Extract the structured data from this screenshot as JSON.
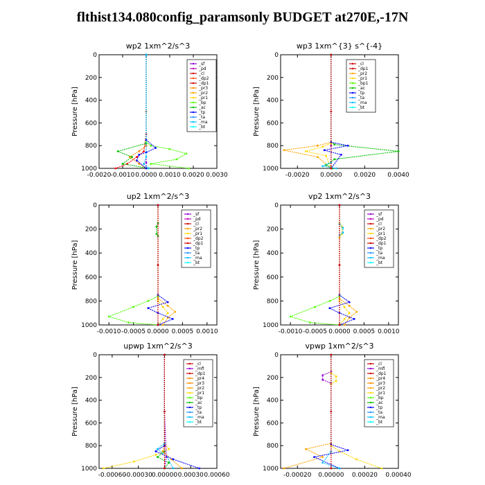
{
  "title": "flthist134.080config_paramsonly  BUDGET at270E,-17N",
  "chart_data": [
    {
      "type": "line",
      "title": "wp2   1xm^2/s^3",
      "ylabel": "Pressure [hPa]",
      "xlim": [
        -0.002,
        0.003
      ],
      "ylim": [
        1000,
        0
      ],
      "xticks": [
        -0.002,
        -0.001,
        0.0,
        0.001,
        0.002,
        0.003
      ],
      "xtick_labels": [
        "-0.0020",
        "-0.0010",
        "0.0000",
        "0.0010",
        "0.0020",
        "0.0030"
      ],
      "yticks": [
        0,
        200,
        400,
        600,
        800,
        1000
      ],
      "ytick_labels": [
        "0",
        "200",
        "400",
        "600",
        "800",
        "1000"
      ],
      "legend": [
        "_sf",
        "_pd",
        "_cl",
        "_dp2",
        "_dp1",
        "_pr3",
        "_pr2",
        "_pr1",
        "_bp",
        "_ac",
        "_tp",
        "_ta",
        "_ma",
        "_bt"
      ],
      "series": [
        {
          "color": "#9400d3",
          "x": [
            0,
            0,
            0,
            0,
            0
          ],
          "y": [
            0,
            500,
            800,
            950,
            1000
          ]
        },
        {
          "color": "#ff8c00",
          "x": [
            0,
            0,
            0,
            -0.0003,
            -0.0007,
            -0.0003,
            0
          ],
          "y": [
            0,
            500,
            800,
            850,
            900,
            960,
            1000
          ]
        },
        {
          "color": "#ff0000",
          "x": [
            0,
            0,
            -0.0001,
            -0.0004,
            -0.0008,
            -0.0013
          ],
          "y": [
            0,
            700,
            850,
            900,
            960,
            1000
          ]
        },
        {
          "color": "#00c000",
          "x": [
            0,
            0,
            -0.0012,
            -0.0006,
            -0.001,
            0.0001
          ],
          "y": [
            0,
            780,
            850,
            900,
            960,
            1000
          ]
        },
        {
          "color": "#4dff00",
          "x": [
            0,
            0,
            0.0002,
            0.001,
            0.0017,
            0.0013,
            0.0002,
            0.0018
          ],
          "y": [
            0,
            770,
            800,
            830,
            870,
            920,
            960,
            1000
          ]
        },
        {
          "color": "#0000ff",
          "x": [
            0,
            0,
            0.0004,
            0,
            -0.0003,
            -0.0004,
            0
          ],
          "y": [
            0,
            750,
            820,
            860,
            880,
            930,
            1000
          ]
        },
        {
          "color": "#00bfff",
          "x": [
            0,
            0,
            -0.0001,
            0.0001
          ],
          "y": [
            0,
            900,
            960,
            1000
          ]
        }
      ]
    },
    {
      "type": "line",
      "title": "wp3   1xm^{3} s^{-4}",
      "ylabel": "Pressure [hPa]",
      "xlim": [
        -0.003,
        0.004
      ],
      "ylim": [
        1000,
        0
      ],
      "xticks": [
        -0.002,
        0.0,
        0.002,
        0.004
      ],
      "xtick_labels": [
        "-0.0020",
        "0.0000",
        "0.0020",
        "0.0040"
      ],
      "yticks": [
        0,
        200,
        400,
        600,
        800,
        1000
      ],
      "ytick_labels": [
        "0",
        "200",
        "400",
        "600",
        "800",
        "1000"
      ],
      "legend": [
        "_cl",
        "_dp1",
        "_pr2",
        "_pr1",
        "_bp1",
        "_ac",
        "_tp",
        "_ta",
        "_ma",
        "_bt"
      ],
      "series": [
        {
          "color": "#9400d3",
          "x": [
            0,
            0,
            0
          ],
          "y": [
            0,
            800,
            1000
          ]
        },
        {
          "color": "#ffa500",
          "x": [
            0,
            0,
            -0.0008,
            -0.0028,
            -0.0008,
            0
          ],
          "y": [
            0,
            770,
            800,
            840,
            900,
            1000
          ]
        },
        {
          "color": "#ffd700",
          "x": [
            0,
            0,
            -0.0005,
            -0.0015,
            -0.0003,
            0
          ],
          "y": [
            0,
            780,
            810,
            850,
            890,
            1000
          ]
        },
        {
          "color": "#00c000",
          "x": [
            0,
            0,
            0.0002,
            0.004,
            0.0002,
            -0.0003,
            0.0001
          ],
          "y": [
            0,
            770,
            790,
            850,
            920,
            970,
            1000
          ]
        },
        {
          "color": "#0000ff",
          "x": [
            0,
            0,
            0.001,
            -0.0004,
            0.0006,
            0
          ],
          "y": [
            0,
            770,
            800,
            840,
            880,
            1000
          ]
        },
        {
          "color": "#00bfff",
          "x": [
            0,
            0,
            -0.0005,
            0.0003
          ],
          "y": [
            0,
            950,
            980,
            1000
          ]
        },
        {
          "color": "#cc0000",
          "x": [
            0,
            0,
            0
          ],
          "y": [
            0,
            500,
            1000
          ]
        }
      ]
    },
    {
      "type": "line",
      "title": "up2   1xm^2/s^3",
      "ylabel": "Pressure [hPa]",
      "xlim": [
        -0.0012,
        0.0012
      ],
      "ylim": [
        1000,
        0
      ],
      "xticks": [
        -0.001,
        -0.0005,
        0.0,
        0.0005,
        0.001
      ],
      "xtick_labels": [
        "-0.0010",
        "-0.0005",
        "0.0000",
        "0.0005",
        "0.0010"
      ],
      "yticks": [
        0,
        200,
        400,
        600,
        800,
        1000
      ],
      "ytick_labels": [
        "0",
        "200",
        "400",
        "600",
        "800",
        "1000"
      ],
      "legend": [
        "_sf",
        "_pd",
        "_cl",
        "_pr2",
        "_pr1",
        "_dp2",
        "_dp1",
        "_tp",
        "_ta",
        "_ma",
        "_bt"
      ],
      "series": [
        {
          "color": "#00c000",
          "x": [
            0,
            -3e-05,
            -3e-05,
            0
          ],
          "y": [
            150,
            180,
            240,
            260
          ]
        },
        {
          "color": "#4dff00",
          "x": [
            0,
            0,
            -0.0002,
            -0.0005,
            -0.001,
            -0.0006,
            0
          ],
          "y": [
            0,
            760,
            800,
            850,
            930,
            980,
            1000
          ]
        },
        {
          "color": "#ffa500",
          "x": [
            0,
            0,
            0.0002,
            0.00035,
            0.0002,
            0.0001
          ],
          "y": [
            0,
            780,
            840,
            890,
            940,
            1000
          ]
        },
        {
          "color": "#ffd700",
          "x": [
            0,
            0,
            0.0001,
            0.0002,
            0.0001,
            0
          ],
          "y": [
            0,
            800,
            850,
            900,
            950,
            1000
          ]
        },
        {
          "color": "#0000ff",
          "x": [
            0,
            0,
            0.0002,
            -0.0002,
            0,
            0.0003,
            0
          ],
          "y": [
            0,
            750,
            810,
            860,
            900,
            950,
            1000
          ]
        },
        {
          "color": "#cc0000",
          "x": [
            0,
            0,
            0
          ],
          "y": [
            0,
            500,
            1000
          ]
        }
      ]
    },
    {
      "type": "line",
      "title": "vp2   1xm^2/s^3",
      "ylabel": "Pressure [hPa]",
      "xlim": [
        -0.0012,
        0.0012
      ],
      "ylim": [
        1000,
        0
      ],
      "xticks": [
        -0.001,
        -0.0005,
        0.0,
        0.0005,
        0.001
      ],
      "xtick_labels": [
        "-0.0010",
        "-0.0005",
        "0.0000",
        "0.0005",
        "0.0010"
      ],
      "yticks": [
        0,
        200,
        400,
        600,
        800,
        1000
      ],
      "ytick_labels": [
        "0",
        "200",
        "400",
        "600",
        "800",
        "1000"
      ],
      "legend": [
        "_sf",
        "_pd",
        "_cl",
        "_pr2",
        "_pr1",
        "_dp2",
        "_dp1",
        "_tp",
        "_ta",
        "_ma",
        "_bt"
      ],
      "series": [
        {
          "color": "#ffd700",
          "x": [
            0,
            5e-05,
            5e-05,
            0
          ],
          "y": [
            150,
            180,
            240,
            270
          ]
        },
        {
          "color": "#00bfff",
          "x": [
            0,
            7e-05,
            7e-05,
            0
          ],
          "y": [
            160,
            190,
            230,
            250
          ]
        },
        {
          "color": "#4dff00",
          "x": [
            0,
            0,
            -0.0002,
            -0.0005,
            -0.001,
            -0.0006,
            0
          ],
          "y": [
            0,
            760,
            800,
            850,
            930,
            980,
            1000
          ]
        },
        {
          "color": "#ffa500",
          "x": [
            0,
            0,
            0.0002,
            0.00035,
            0.0002,
            0.0001
          ],
          "y": [
            0,
            780,
            840,
            890,
            940,
            1000
          ]
        },
        {
          "color": "#ffd700",
          "x": [
            0,
            0,
            0.0001,
            0.0002,
            0.0001,
            0
          ],
          "y": [
            0,
            800,
            850,
            900,
            950,
            1000
          ]
        },
        {
          "color": "#0000ff",
          "x": [
            0,
            0,
            0.0002,
            -0.0002,
            0,
            0.0003,
            0
          ],
          "y": [
            0,
            750,
            810,
            860,
            900,
            950,
            1000
          ]
        },
        {
          "color": "#cc0000",
          "x": [
            0,
            0,
            0
          ],
          "y": [
            0,
            500,
            1000
          ]
        }
      ]
    },
    {
      "type": "line",
      "title": "upwp   1xm^2/s^3",
      "ylabel": "Pressure [hPa]",
      "xlim": [
        -0.00075,
        0.0006
      ],
      "ylim": [
        1000,
        0
      ],
      "xticks": [
        -0.0006,
        -0.0003,
        0.0,
        0.0003,
        0.0006
      ],
      "xtick_labels": [
        "-0.00060",
        "-0.00030",
        "0.00000",
        "0.00030",
        "0.00060"
      ],
      "yticks": [
        0,
        200,
        400,
        600,
        800,
        1000
      ],
      "ytick_labels": [
        "0",
        "200",
        "400",
        "600",
        "800",
        "1000"
      ],
      "legend": [
        "_cl",
        "_mfl",
        "_dp1",
        "_pr4",
        "_pr3",
        "_pr2",
        "_pr1",
        "_bp",
        "_ac",
        "_tp",
        "_ta",
        "_ma",
        "_bt"
      ],
      "series": [
        {
          "color": "#ffd700",
          "x": [
            0,
            0,
            5e-05,
            -0.0001,
            -0.00035,
            -0.0007
          ],
          "y": [
            0,
            780,
            830,
            880,
            940,
            1000
          ]
        },
        {
          "color": "#ffa500",
          "x": [
            0,
            0,
            -2e-05,
            8e-05,
            0.0002
          ],
          "y": [
            0,
            800,
            850,
            920,
            1000
          ]
        },
        {
          "color": "#0000ff",
          "x": [
            0,
            0,
            -0.0001,
            0.0001,
            0.0004
          ],
          "y": [
            0,
            800,
            850,
            920,
            1000
          ]
        },
        {
          "color": "#00bfff",
          "x": [
            0,
            0,
            -8e-05,
            3e-05,
            0.0001
          ],
          "y": [
            0,
            780,
            830,
            900,
            1000
          ]
        },
        {
          "color": "#00c000",
          "x": [
            0,
            0,
            -8e-05,
            5e-05,
            0
          ],
          "y": [
            0,
            850,
            900,
            950,
            1000
          ]
        },
        {
          "color": "#9400d3",
          "x": [
            0,
            0,
            2e-05,
            0
          ],
          "y": [
            0,
            500,
            900,
            1000
          ]
        },
        {
          "color": "#cc0000",
          "x": [
            0,
            0,
            0
          ],
          "y": [
            0,
            500,
            1000
          ]
        }
      ]
    },
    {
      "type": "line",
      "title": "vpwp   1xm^2/s^3",
      "ylabel": "Pressure [hPa]",
      "xlim": [
        -0.0003,
        0.0004
      ],
      "ylim": [
        1000,
        0
      ],
      "xticks": [
        -0.0002,
        0.0,
        0.0002,
        0.0004
      ],
      "xtick_labels": [
        "-0.00020",
        "0.00000",
        "0.00020",
        "0.00040"
      ],
      "yticks": [
        0,
        200,
        400,
        600,
        800,
        1000
      ],
      "ytick_labels": [
        "0",
        "200",
        "400",
        "600",
        "800",
        "1000"
      ],
      "legend": [
        "_cl",
        "_mfl",
        "_dp1",
        "_pr4",
        "_pr3",
        "_pr2",
        "_pr1",
        "_bp",
        "_ac",
        "_tp",
        "_ta",
        "_ma",
        "_bt"
      ],
      "series": [
        {
          "color": "#9400d3",
          "x": [
            0,
            0,
            -5e-05,
            -5e-05,
            0
          ],
          "y": [
            0,
            150,
            180,
            220,
            250
          ]
        },
        {
          "color": "#ffd700",
          "x": [
            0,
            0,
            3e-05,
            3e-05,
            0
          ],
          "y": [
            0,
            160,
            190,
            230,
            260
          ]
        },
        {
          "color": "#ffa500",
          "x": [
            0,
            0,
            -0.00015,
            -5e-05,
            -0.00028
          ],
          "y": [
            0,
            780,
            830,
            900,
            1000
          ]
        },
        {
          "color": "#ffd700",
          "x": [
            0,
            0,
            5e-05,
            0.00015,
            0.0003
          ],
          "y": [
            0,
            800,
            850,
            920,
            1000
          ]
        },
        {
          "color": "#0000ff",
          "x": [
            0,
            0,
            0.0001,
            -0.0001,
            5e-05
          ],
          "y": [
            0,
            790,
            840,
            900,
            1000
          ]
        },
        {
          "color": "#00bfff",
          "x": [
            0,
            0,
            -5e-05,
            5e-05
          ],
          "y": [
            0,
            850,
            950,
            1000
          ]
        },
        {
          "color": "#cc0000",
          "x": [
            0,
            0,
            0
          ],
          "y": [
            0,
            500,
            1000
          ]
        }
      ]
    }
  ]
}
